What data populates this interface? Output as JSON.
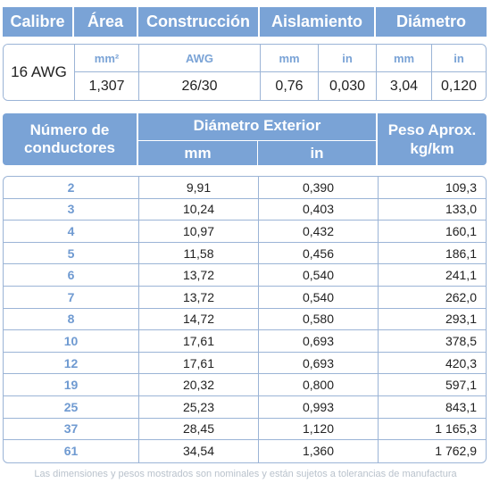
{
  "spec_header": {
    "calibre": "Calibre",
    "area": "Área",
    "construccion": "Construcción",
    "aislamiento": "Aislamiento",
    "diametro": "Diámetro"
  },
  "spec": {
    "gauge": "16 AWG",
    "units": {
      "area": "mm²",
      "construccion": "AWG",
      "aislamiento_mm": "mm",
      "aislamiento_in": "in",
      "diametro_mm": "mm",
      "diametro_in": "in"
    },
    "values": {
      "area": "1,307",
      "construccion": "26/30",
      "aislamiento_mm": "0,76",
      "aislamiento_in": "0,030",
      "diametro_mm": "3,04",
      "diametro_in": "0,120"
    }
  },
  "cond_header": {
    "num_line1": "Número de",
    "num_line2": "conductores",
    "diam_title": "Diámetro Exterior",
    "diam_mm": "mm",
    "diam_in": "in",
    "peso_line1": "Peso Aprox.",
    "peso_line2": "kg/km"
  },
  "rows": [
    {
      "n": "2",
      "mm": "9,91",
      "in": "0,390",
      "kg": "109,3"
    },
    {
      "n": "3",
      "mm": "10,24",
      "in": "0,403",
      "kg": "133,0"
    },
    {
      "n": "4",
      "mm": "10,97",
      "in": "0,432",
      "kg": "160,1"
    },
    {
      "n": "5",
      "mm": "11,58",
      "in": "0,456",
      "kg": "186,1"
    },
    {
      "n": "6",
      "mm": "13,72",
      "in": "0,540",
      "kg": "241,1"
    },
    {
      "n": "7",
      "mm": "13,72",
      "in": "0,540",
      "kg": "262,0"
    },
    {
      "n": "8",
      "mm": "14,72",
      "in": "0,580",
      "kg": "293,1"
    },
    {
      "n": "10",
      "mm": "17,61",
      "in": "0,693",
      "kg": "378,5"
    },
    {
      "n": "12",
      "mm": "17,61",
      "in": "0,693",
      "kg": "420,3"
    },
    {
      "n": "19",
      "mm": "20,32",
      "in": "0,800",
      "kg": "597,1"
    },
    {
      "n": "25",
      "mm": "25,23",
      "in": "0,993",
      "kg": "843,1"
    },
    {
      "n": "37",
      "mm": "28,45",
      "in": "1,120",
      "kg": "1 165,3"
    },
    {
      "n": "61",
      "mm": "34,54",
      "in": "1,360",
      "kg": "1 762,9"
    }
  ],
  "footnote": "Las dimensiones y pesos mostrados son nominales y están sujetos a tolerancias de manufactura"
}
